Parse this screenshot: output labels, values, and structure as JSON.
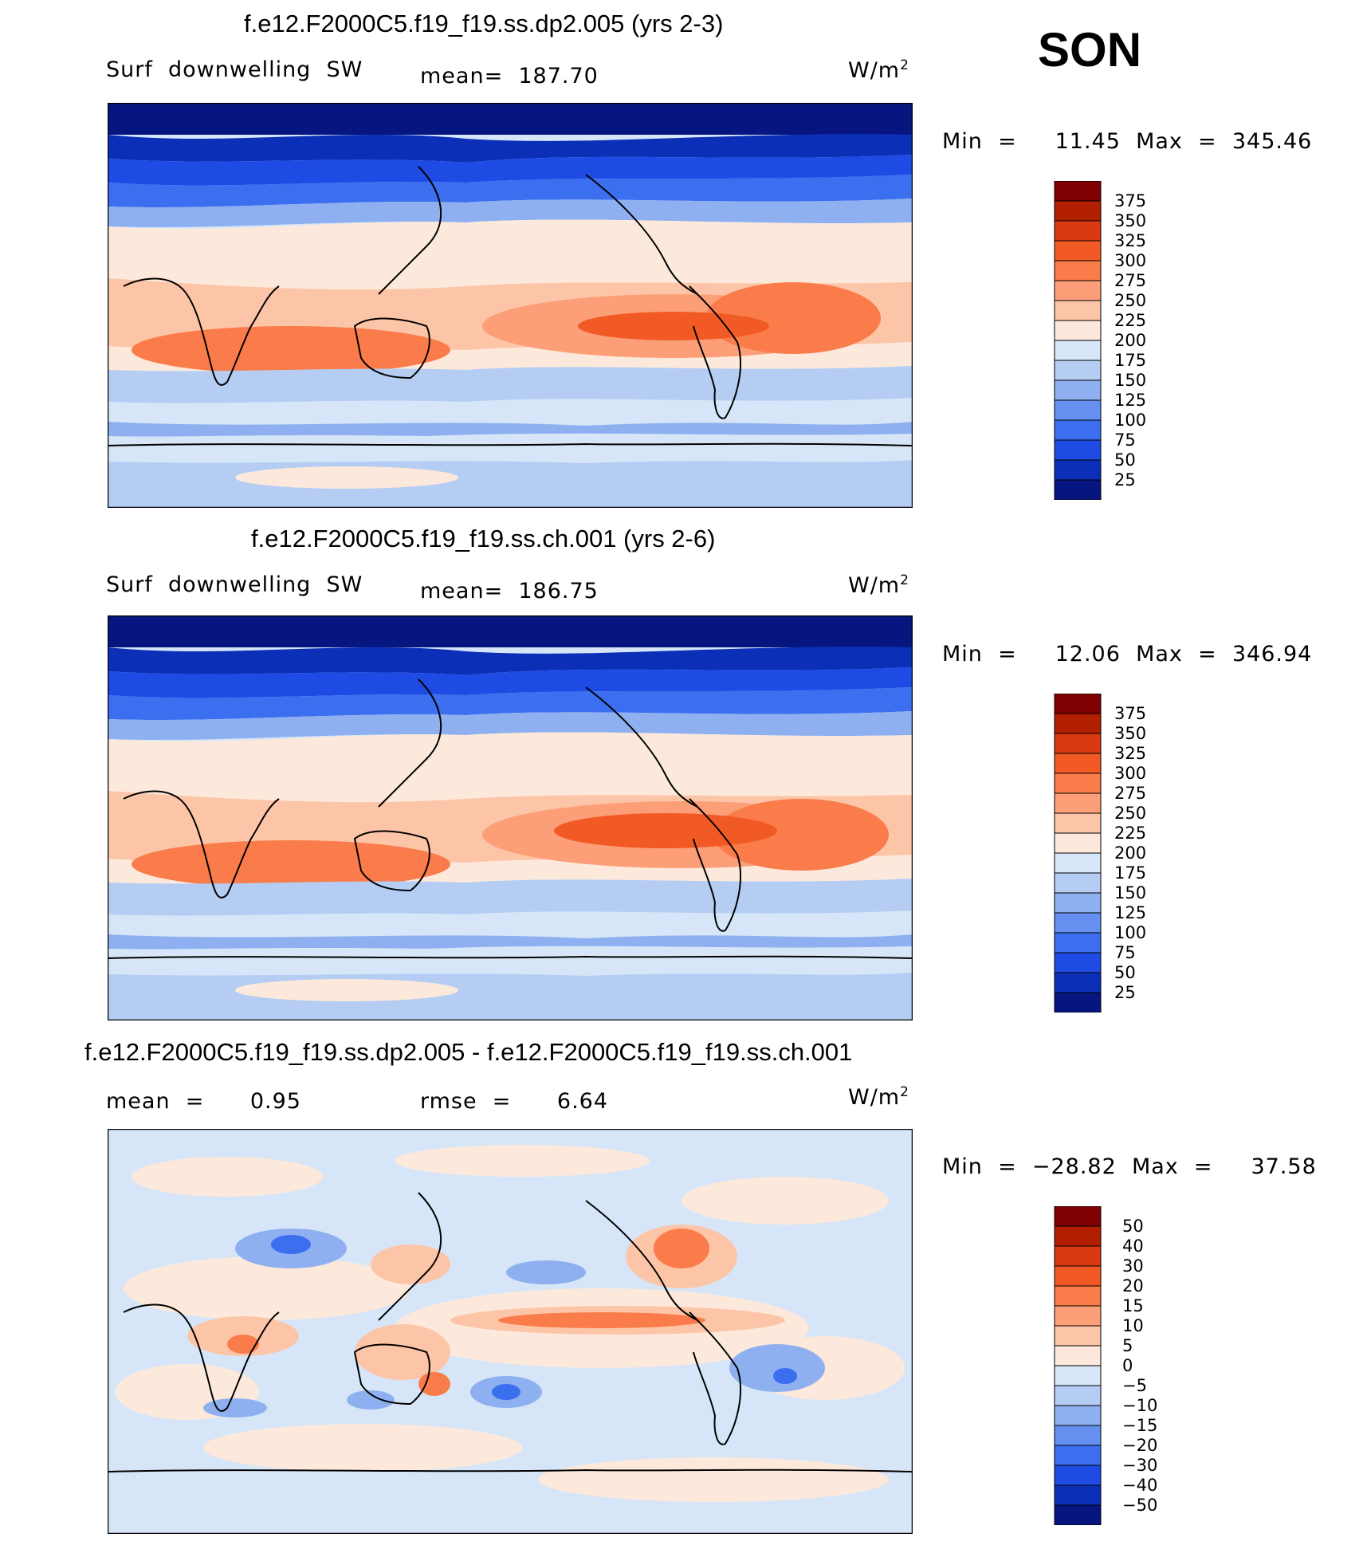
{
  "season": "SON",
  "panels": [
    {
      "title": "f.e12.F2000C5.f19_f19.ss.dp2.005 (yrs 2-3)",
      "left_label": "Surf  downwelling  SW",
      "stat_label": "mean=  187.70",
      "units": "W/m",
      "units_sup": "2",
      "minmax": "Min  =     11.45  Max  =  345.46",
      "field": {
        "mean": 187.7,
        "min": 11.45,
        "max": 345.46
      },
      "colorbar_labels": [
        "375",
        "350",
        "325",
        "300",
        "275",
        "250",
        "225",
        "200",
        "175",
        "150",
        "125",
        "100",
        "75",
        "50",
        "25"
      ]
    },
    {
      "title": "f.e12.F2000C5.f19_f19.ss.ch.001 (yrs 2-6)",
      "left_label": "Surf  downwelling  SW",
      "stat_label": "mean=  186.75",
      "units": "W/m",
      "units_sup": "2",
      "minmax": "Min  =     12.06  Max  =  346.94",
      "field": {
        "mean": 186.75,
        "min": 12.06,
        "max": 346.94
      },
      "colorbar_labels": [
        "375",
        "350",
        "325",
        "300",
        "275",
        "250",
        "225",
        "200",
        "175",
        "150",
        "125",
        "100",
        "75",
        "50",
        "25"
      ]
    },
    {
      "title": "f.e12.F2000C5.f19_f19.ss.dp2.005 - f.e12.F2000C5.f19_f19.ss.ch.001",
      "left_label": "mean  =      0.95",
      "stat_label": "rmse  =      6.64",
      "units": "W/m",
      "units_sup": "2",
      "minmax": "Min  =  −28.82  Max  =     37.58",
      "field": {
        "mean": 0.95,
        "rmse": 6.64,
        "min": -28.82,
        "max": 37.58
      },
      "colorbar_labels": [
        "50",
        "40",
        "30",
        "20",
        "15",
        "10",
        "5",
        "0",
        "−5",
        "−10",
        "−15",
        "−20",
        "−30",
        "−40",
        "−50"
      ]
    }
  ],
  "colorbar_colors": [
    "#7f0000",
    "#b21e00",
    "#d93a12",
    "#f25a25",
    "#fa7c4a",
    "#fc9f78",
    "#fdc5a8",
    "#fde9db",
    "#d6e6f8",
    "#b5cdf3",
    "#8eb0f0",
    "#6590f0",
    "#3c6ef0",
    "#1e4be4",
    "#0c2fb8",
    "#06157f"
  ]
}
